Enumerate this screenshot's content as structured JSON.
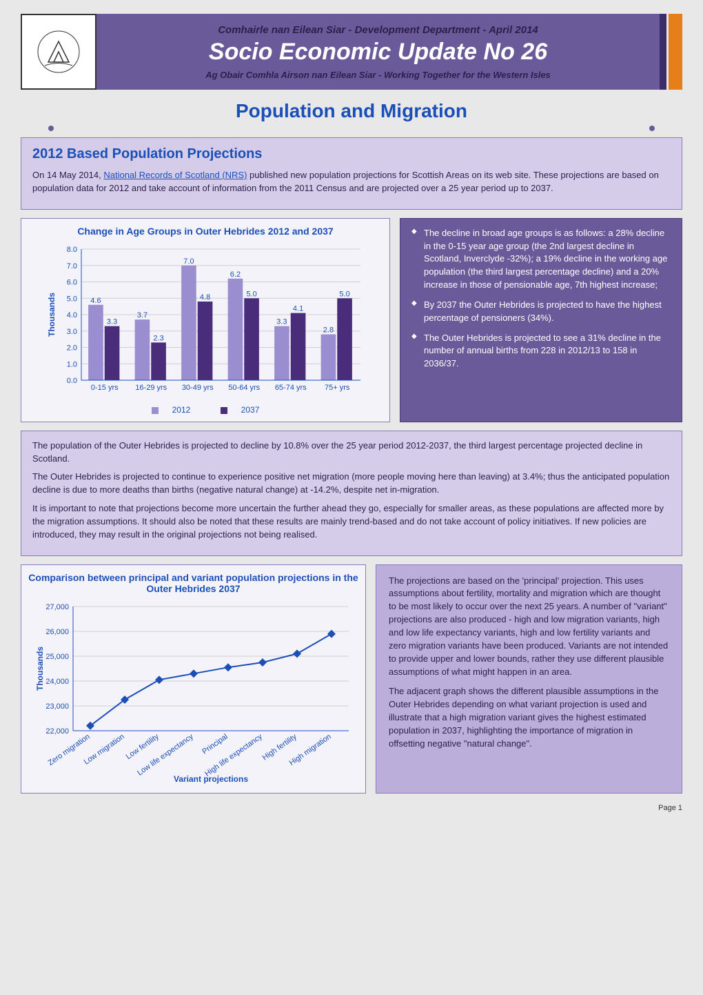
{
  "header": {
    "dept": "Comhairle nan Eilean Siar - Development Department - April 2014",
    "title": "Socio Economic Update No 26",
    "subtitle": "Ag Obair Comhla Airson nan Eilean Siar - Working Together for the Western Isles"
  },
  "main_title": "Population and Migration",
  "intro": {
    "heading": "2012 Based Population Projections",
    "body": "On 14 May 2014, National Records of Scotland (NRS) published new population projections for Scottish Areas on its web site. These projections are based on population data for 2012 and take account of information from the 2011 Census and are projected over a 25 year period up to 2037.",
    "link_text": "National Records of Scotland (NRS)"
  },
  "chart1": {
    "type": "bar",
    "title": "Change in Age Groups in Outer Hebrides 2012 and 2037",
    "ylabel": "Thousands",
    "categories": [
      "0-15 yrs",
      "16-29 yrs",
      "30-49 yrs",
      "50-64 yrs",
      "65-74 yrs",
      "75+ yrs"
    ],
    "series": [
      {
        "name": "2012",
        "color": "#9a8ed0",
        "values": [
          4.6,
          3.7,
          7.0,
          6.2,
          3.3,
          2.8
        ]
      },
      {
        "name": "2037",
        "color": "#4a2d7a",
        "values": [
          3.3,
          2.3,
          4.8,
          5.0,
          4.1,
          5.0
        ]
      }
    ],
    "data_labels": [
      [
        "4.6",
        "3.7",
        "7.0",
        "6.2",
        "3.3",
        "2.8"
      ],
      [
        "3.3",
        "2.3",
        "4.8",
        "5.0",
        "4.1",
        "5.0"
      ]
    ],
    "ylim": [
      0.0,
      8.0
    ],
    "ytick_step": 1.0,
    "grid_color": "#d0d0d0",
    "background_color": "#f5f3fa",
    "bar_group_width": 0.7,
    "label_fontsize": 11,
    "title_fontsize": 14
  },
  "bullets": [
    "The decline in broad age groups is as follows: a 28% decline in the 0-15 year age group (the 2nd largest decline in Scotland, Inverclyde -32%); a 19% decline in the working age population (the third largest percentage decline) and a 20% increase in those of pensionable age, 7th highest increase;",
    "By 2037 the Outer Hebrides is projected to have the highest percentage of pensioners (34%).",
    "The Outer Hebrides is projected to see a 31% decline in the number of annual births from 228 in 2012/13 to 158 in 2036/37."
  ],
  "mid_text": [
    "The population of the Outer Hebrides is projected to decline by 10.8% over the 25 year period 2012-2037, the third largest percentage projected decline in Scotland.",
    "The Outer Hebrides is projected to continue to experience positive net migration (more people moving here than leaving) at 3.4%; thus the anticipated population decline is due to more deaths than births (negative natural change) at -14.2%, despite net in-migration.",
    "It is important to note that projections become more uncertain the further ahead they go, especially for smaller areas, as these populations are affected more by the migration assumptions. It should also be noted that these results are mainly trend-based and do not take account of policy initiatives. If new policies are introduced, they may result in the original projections not being realised."
  ],
  "chart2": {
    "type": "line",
    "title": "Comparison between principal and variant population projections in the Outer Hebrides 2037",
    "ylabel": "Thousands",
    "xlabel": "Variant projections",
    "categories": [
      "Zero migration",
      "Low migration",
      "Low fertility",
      "Low life expectancy",
      "Principal",
      "High life expectancy",
      "High fertility",
      "High migration"
    ],
    "values": [
      22200,
      23250,
      24050,
      24300,
      24550,
      24750,
      25100,
      25900
    ],
    "ylim": [
      22000,
      27000
    ],
    "ytick_step": 1000,
    "line_color": "#1a4fb8",
    "marker_color": "#1a4fb8",
    "marker_style": "diamond",
    "marker_size": 6,
    "line_width": 2,
    "grid_color": "#d0d0d0",
    "background_color": "#f5f3fa",
    "label_fontsize": 11,
    "title_fontsize": 14
  },
  "bottom_text": [
    "The projections are based on the 'principal' projection. This uses assumptions about fertility, mortality and migration which are thought to be most likely to occur over the next 25 years. A number of \"variant\" projections are also produced - high and low migration variants, high and low life expectancy variants, high and low fertility variants and zero migration variants have been produced. Variants are not intended to provide upper and lower bounds, rather they use different plausible assumptions of what might happen in an area.",
    "The adjacent graph shows the different plausible assumptions in the Outer Hebrides depending on what variant projection is used and illustrate that a high migration variant gives the highest estimated population in 2037, highlighting the importance of migration in offsetting negative \"natural change\"."
  ],
  "page_number": "Page 1"
}
